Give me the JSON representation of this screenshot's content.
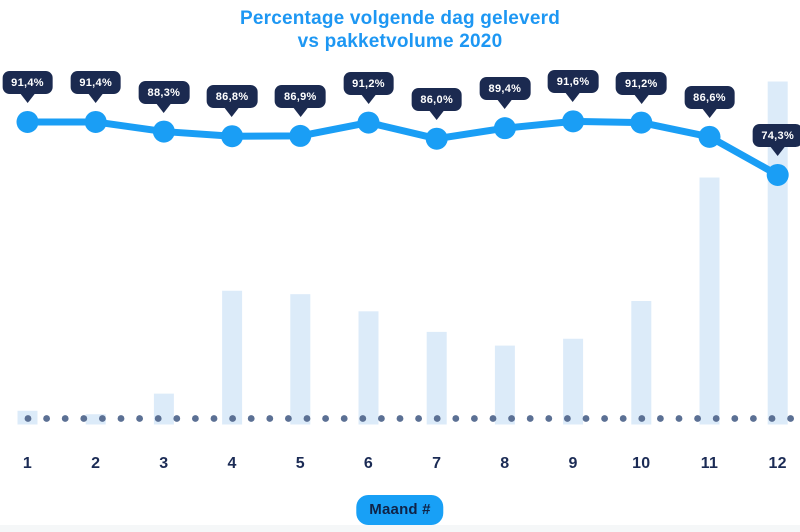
{
  "title": {
    "line1": "Percentage volgende dag geleverd",
    "line2": "vs pakketvolume 2020"
  },
  "x_axis": {
    "label_badge": "Maand #",
    "categories": [
      "1",
      "2",
      "3",
      "4",
      "5",
      "6",
      "7",
      "8",
      "9",
      "10",
      "11",
      "12"
    ]
  },
  "chart_data": {
    "type": "combo",
    "title": "Percentage volgende dag geleverd vs pakketvolume 2020",
    "xlabel": "Maand #",
    "categories": [
      1,
      2,
      3,
      4,
      5,
      6,
      7,
      8,
      9,
      10,
      11,
      12
    ],
    "legend_position": "none",
    "grid": "dotted-baseline-only",
    "series": [
      {
        "name": "Percentage volgende dag geleverd",
        "type": "line",
        "unit": "%",
        "values": [
          91.4,
          91.4,
          88.3,
          86.8,
          86.9,
          91.2,
          86.0,
          89.4,
          91.6,
          91.2,
          86.6,
          74.3
        ],
        "point_labels": [
          "91,4%",
          "91,4%",
          "88,3%",
          "86,8%",
          "86,9%",
          "91,2%",
          "86,0%",
          "89,4%",
          "91,6%",
          "91,2%",
          "86,6%",
          "74,3%"
        ]
      },
      {
        "name": "Pakketvolume 2020",
        "type": "bar",
        "unit": "relative volume index (estimated, max month = 100)",
        "values": [
          4,
          3,
          9,
          39,
          38,
          33,
          27,
          23,
          25,
          36,
          72,
          100
        ]
      }
    ],
    "colors": {
      "title": "#1d97f3",
      "line": "#1a9ef5",
      "marker": "#1a9ef5",
      "bar": "#dcebf9",
      "baseline_dots": "#5b7094",
      "tooltip_bg": "#1b2a50",
      "tooltip_text": "#ffffff",
      "axis_text": "#1b2b55",
      "badge_bg": "#18a0f6",
      "badge_text": "#0f2347"
    }
  }
}
